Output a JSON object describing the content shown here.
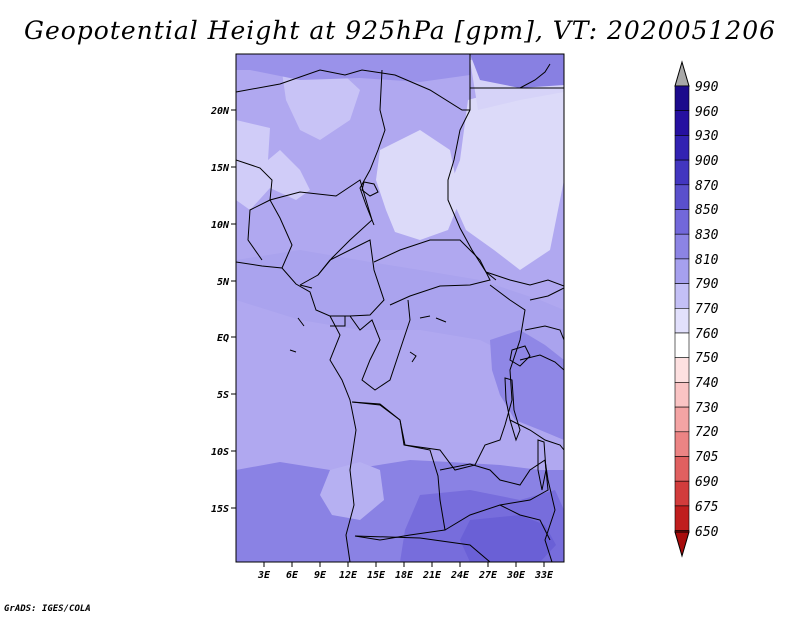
{
  "title": "Geopotential Height at 925hPa [gpm], VT: 2020051206",
  "footer": "GrADS: IGES/COLA",
  "lat_ticks": [
    "20N",
    "15N",
    "10N",
    "5N",
    "EQ",
    "5S",
    "10S",
    "15S"
  ],
  "lon_ticks": [
    "3E",
    "6E",
    "9E",
    "12E",
    "15E",
    "18E",
    "21E",
    "24E",
    "27E",
    "30E",
    "33E"
  ],
  "colorbar_labels": [
    "990",
    "960",
    "930",
    "900",
    "870",
    "850",
    "830",
    "810",
    "790",
    "770",
    "760",
    "750",
    "740",
    "730",
    "720",
    "705",
    "690",
    "675",
    "650"
  ],
  "colors": {
    "c990": "#1c0a8c",
    "c960": "#2610a0",
    "c930": "#3222b2",
    "c900": "#4236c0",
    "c870": "#5a50cc",
    "c850": "#7268da",
    "c830": "#8c84e4",
    "c810": "#a6a0ee",
    "c790": "#c4c0f6",
    "c770": "#e2e0fc",
    "c760": "#ffffff",
    "c750": "#fde0e0",
    "c740": "#fac4c4",
    "c730": "#f4a4a4",
    "c720": "#ec8484",
    "c705": "#e06060",
    "c690": "#d23c3c",
    "c675": "#c01e1e",
    "c650": "#a80c0c",
    "top_triangle": "#a8a8a8",
    "bottom_triangle": "#a80c0c"
  }
}
